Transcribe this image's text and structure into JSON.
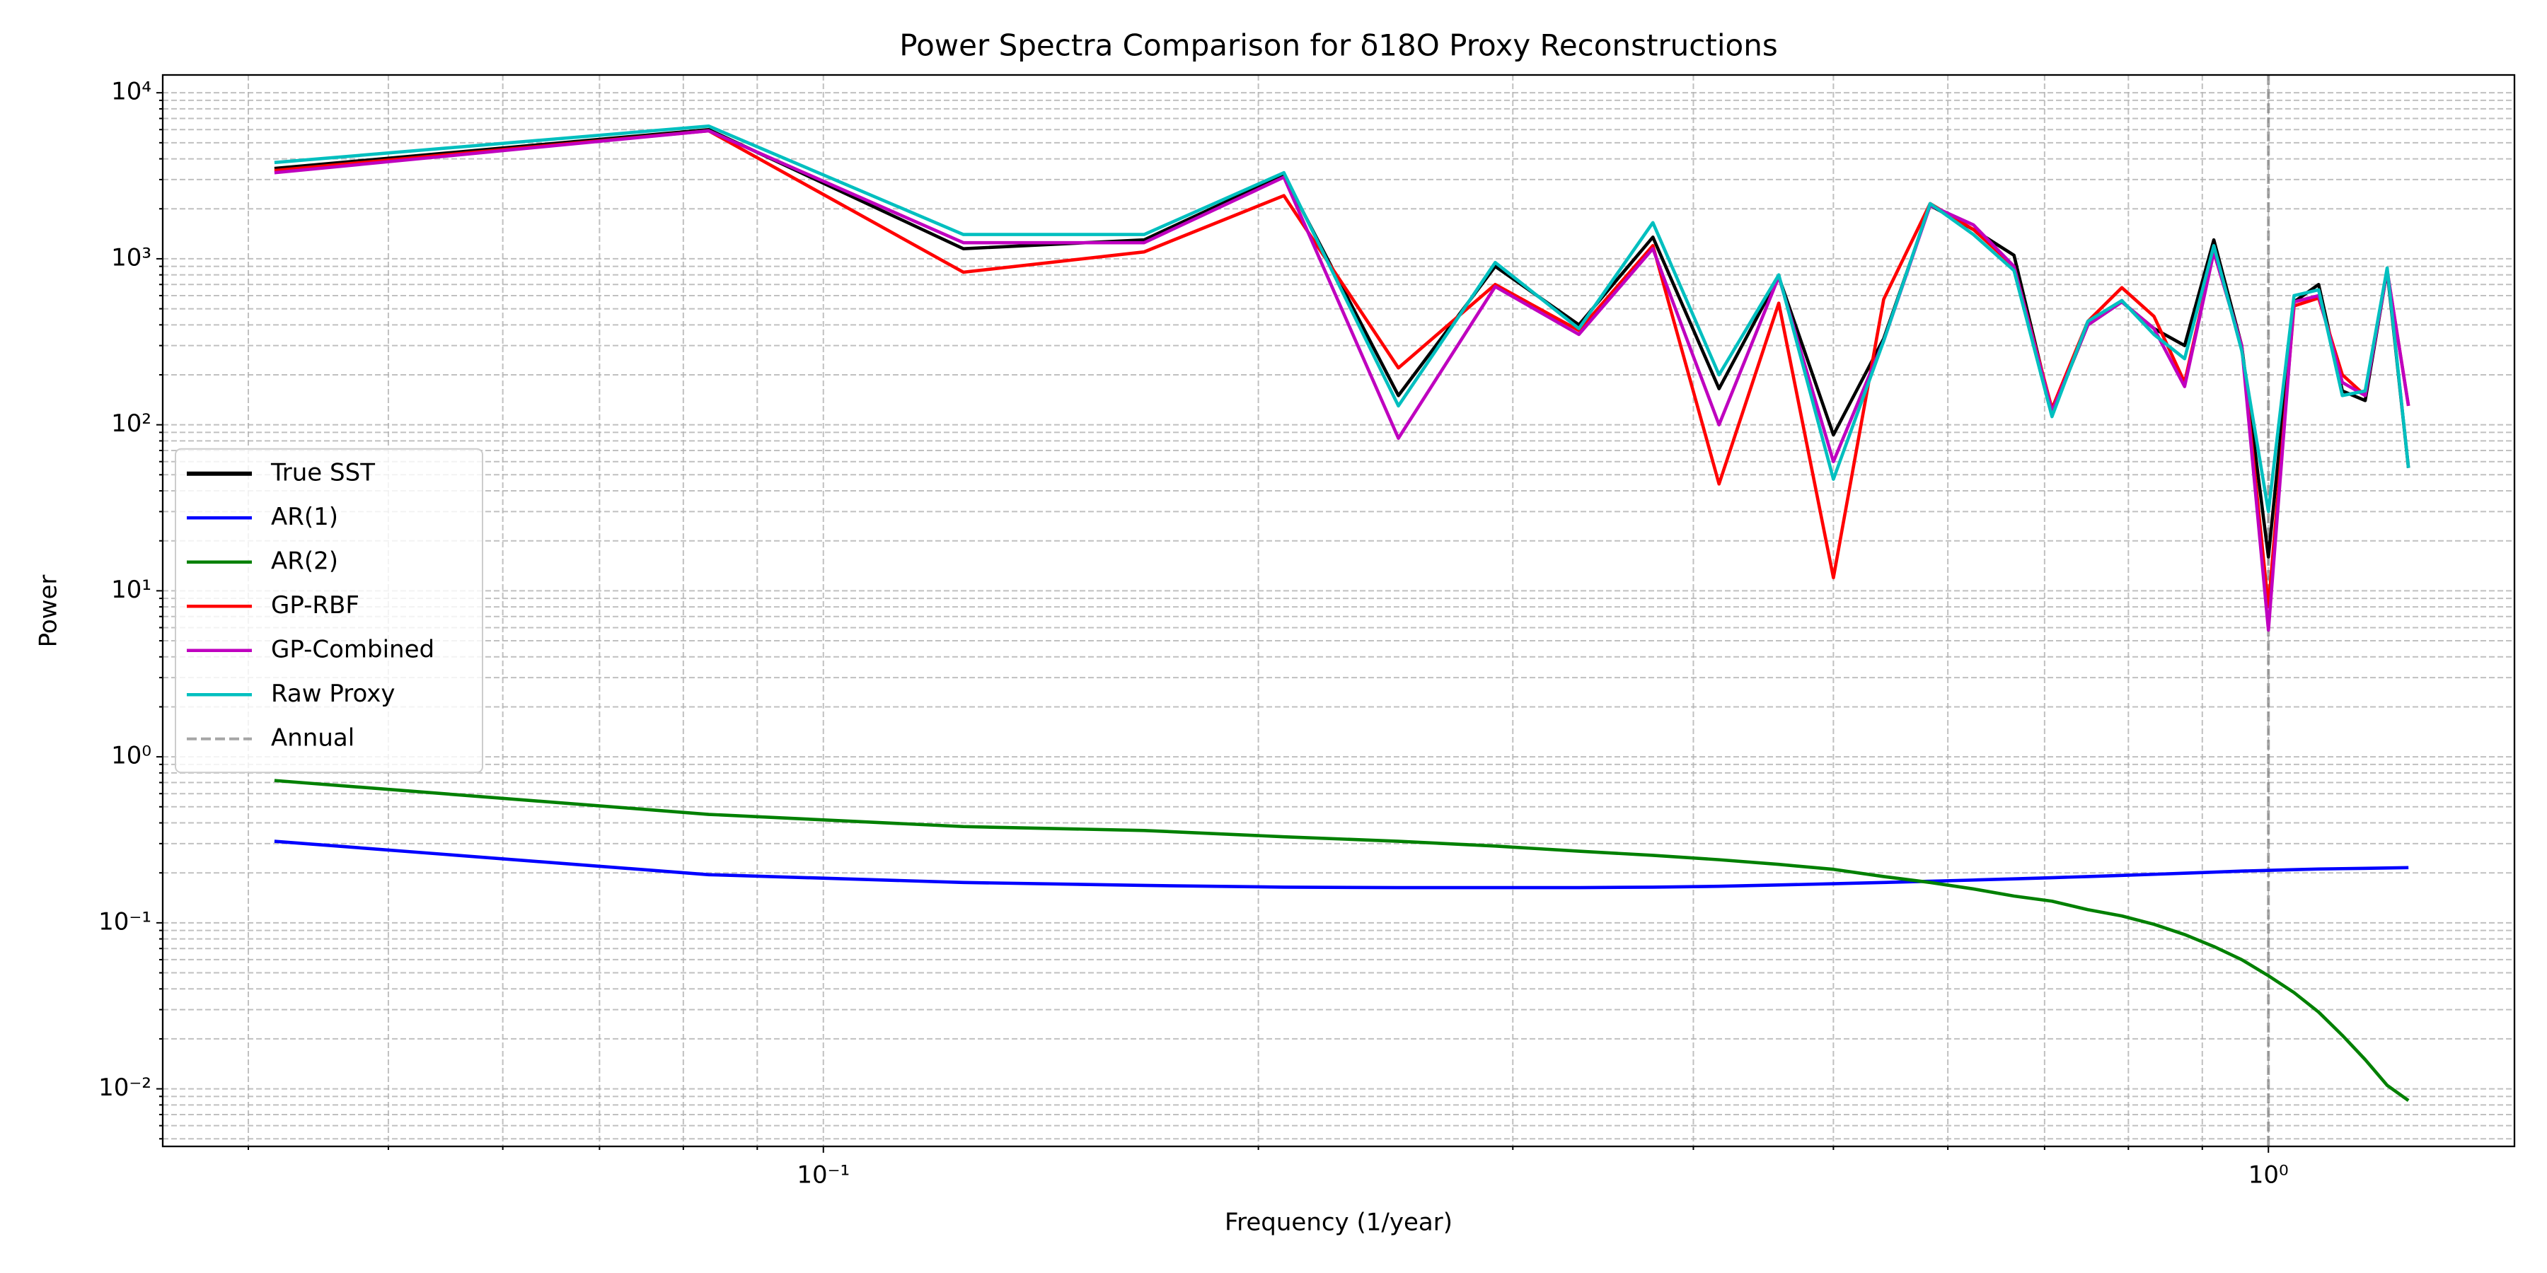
{
  "chart_data": {
    "type": "line",
    "title": "Power Spectra Comparison for δ18O Proxy Reconstructions",
    "xlabel": "Frequency (1/year)",
    "ylabel": "Power",
    "x": [
      0.0417,
      0.0833,
      0.125,
      0.1667,
      0.2083,
      0.25,
      0.2917,
      0.3333,
      0.375,
      0.4167,
      0.4583,
      0.5,
      0.5417,
      0.5833,
      0.625,
      0.6667,
      0.7083,
      0.75,
      0.7917,
      0.8333,
      0.875,
      0.9167,
      0.9583,
      1.0,
      1.0417,
      1.0833,
      1.125,
      1.1667,
      1.2083,
      1.25
    ],
    "series": [
      {
        "name": "True SST",
        "color": "#000000",
        "values": [
          3500,
          6000,
          1150,
          1300,
          3200,
          150,
          900,
          400,
          1350,
          165,
          780,
          87,
          330,
          2100,
          1500,
          1050,
          118,
          400,
          550,
          380,
          300,
          1300,
          300,
          16,
          550,
          700,
          160,
          140,
          850,
          55
        ]
      },
      {
        "name": "AR(1)",
        "color": "#0000ff",
        "values": [
          0.31,
          0.195,
          0.175,
          0.168,
          0.164,
          0.163,
          0.163,
          0.163,
          0.164,
          0.166,
          0.169,
          0.172,
          0.175,
          0.178,
          0.181,
          0.184,
          0.187,
          0.19,
          0.193,
          0.196,
          0.199,
          0.202,
          0.205,
          0.207,
          0.209,
          0.211,
          0.212,
          0.213,
          0.214,
          0.215
        ]
      },
      {
        "name": "AR(2)",
        "color": "#008000",
        "values": [
          0.72,
          0.45,
          0.38,
          0.36,
          0.33,
          0.31,
          0.29,
          0.27,
          0.255,
          0.24,
          0.225,
          0.21,
          0.19,
          0.175,
          0.16,
          0.145,
          0.135,
          0.12,
          0.11,
          0.098,
          0.085,
          0.072,
          0.06,
          0.048,
          0.038,
          0.029,
          0.021,
          0.015,
          0.0105,
          0.0085
        ]
      },
      {
        "name": "GP-RBF",
        "color": "#ff0000",
        "values": [
          3400,
          5900,
          830,
          1100,
          2400,
          220,
          700,
          370,
          1200,
          44,
          540,
          12,
          570,
          2150,
          1500,
          900,
          125,
          420,
          670,
          450,
          180,
          1100,
          300,
          8,
          520,
          580,
          200,
          150,
          850,
          130
        ]
      },
      {
        "name": "GP-Combined",
        "color": "#bf00bf",
        "values": [
          3300,
          5900,
          1250,
          1250,
          3100,
          83,
          680,
          350,
          1150,
          100,
          780,
          60,
          320,
          2100,
          1600,
          900,
          120,
          400,
          550,
          380,
          170,
          1100,
          300,
          5.8,
          550,
          600,
          180,
          150,
          850,
          130
        ]
      },
      {
        "name": "Raw Proxy",
        "color": "#00bfbf",
        "values": [
          3800,
          6300,
          1400,
          1400,
          3300,
          130,
          950,
          380,
          1650,
          200,
          800,
          47,
          320,
          2150,
          1400,
          850,
          112,
          420,
          560,
          350,
          250,
          1200,
          280,
          30,
          600,
          650,
          150,
          160,
          880,
          55
        ]
      }
    ],
    "vlines": [
      {
        "name": "Annual",
        "x": 1,
        "color": "#808080"
      }
    ],
    "xscale": "log",
    "yscale": "log",
    "xlim": [
      0.0349,
      1.48
    ],
    "ylim": [
      0.0045,
      12800
    ],
    "xticks": [
      {
        "value": 0.1,
        "label": "10⁻¹"
      },
      {
        "value": 1,
        "label": "10⁰"
      }
    ],
    "yticks": [
      {
        "value": 0.01,
        "label": "10⁻²"
      },
      {
        "value": 0.1,
        "label": "10⁻¹"
      },
      {
        "value": 1,
        "label": "10⁰"
      },
      {
        "value": 10,
        "label": "10¹"
      },
      {
        "value": 100,
        "label": "10²"
      },
      {
        "value": 1000,
        "label": "10³"
      },
      {
        "value": 10000,
        "label": "10⁴"
      }
    ],
    "grid": true,
    "minor_grid": true,
    "legend_loc": "center left"
  }
}
